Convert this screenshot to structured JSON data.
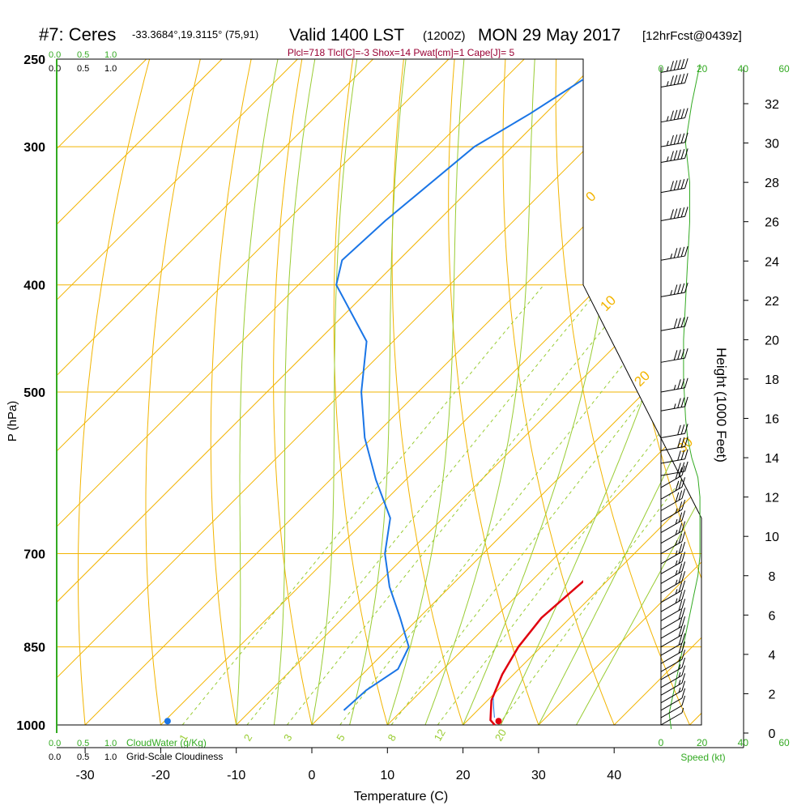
{
  "chart_data": {
    "type": "skew-t",
    "header": {
      "station": "#7: Ceres",
      "coords": "-33.3684°,19.3115° (75,91)",
      "valid": "Valid 1400 LST",
      "utc": "(1200Z)",
      "date": "MON 29 May 2017",
      "fcst": "[12hrFcst@0439z]"
    },
    "indices": "Plcl=718 Tlcl[C]=-3 Shox=14 Pwat[cm]=1 Cape[J]= 5",
    "xlabel": "Temperature (C)",
    "ylabel": "P (hPa)",
    "height_label": "Height (1000 Feet)",
    "speed_label": "Speed (kt)",
    "cloudwater_label": "CloudWater (g/Kg)",
    "cloudiness_label": "Grid-Scale Cloudiness",
    "cloud_ticks": [
      "0.0",
      "0.5",
      "1.0"
    ],
    "x_ticks": [
      "-30",
      "-20",
      "-10",
      "0",
      "10",
      "20",
      "30",
      "40"
    ],
    "pressure_ticks": [
      "250",
      "300",
      "400",
      "500",
      "700",
      "850",
      "1000"
    ],
    "height_ticks": [
      "0",
      "2",
      "4",
      "6",
      "8",
      "10",
      "12",
      "14",
      "16",
      "18",
      "20",
      "22",
      "24",
      "26",
      "28",
      "30",
      "32"
    ],
    "speed_ticks": [
      "0",
      "20",
      "40",
      "60"
    ],
    "mixing_ratio_labels": [
      "1",
      "2",
      "3",
      "5",
      "8",
      "12",
      "20"
    ],
    "isotherm_labels": [
      "10",
      "0",
      "-10",
      "-20",
      "-30"
    ],
    "adiabat_labels": [
      "0",
      "10",
      "20",
      "30"
    ],
    "temperature_profile": [
      [
        1000,
        24.2
      ],
      [
        990,
        23.0
      ],
      [
        950,
        20.5
      ],
      [
        900,
        18.5
      ],
      [
        850,
        17.0
      ],
      [
        800,
        16.2
      ],
      [
        750,
        16.8
      ],
      [
        700,
        17.5
      ],
      [
        650,
        18.2
      ],
      [
        600,
        17.5
      ],
      [
        550,
        14.5
      ],
      [
        500,
        10.5
      ],
      [
        450,
        5.5
      ],
      [
        400,
        0.0
      ],
      [
        350,
        -6.5
      ],
      [
        300,
        -14.5
      ],
      [
        270,
        -20.0
      ],
      [
        257,
        -22.5
      ]
    ],
    "dewpoint_profile": [
      [
        970,
        2.3
      ],
      [
        930,
        2.6
      ],
      [
        890,
        4.0
      ],
      [
        850,
        2.5
      ],
      [
        800,
        -2.5
      ],
      [
        750,
        -8.0
      ],
      [
        700,
        -13.0
      ],
      [
        650,
        -17.0
      ],
      [
        600,
        -24.0
      ],
      [
        550,
        -31.0
      ],
      [
        500,
        -37.5
      ],
      [
        450,
        -43.5
      ],
      [
        400,
        -55.0
      ],
      [
        380,
        -57.5
      ],
      [
        350,
        -57.0
      ],
      [
        300,
        -55.0
      ],
      [
        280,
        -52.0
      ],
      [
        257,
        -49.0
      ]
    ],
    "surface_temperature": 24.2,
    "surface_dewpoint": 4.9,
    "wind_speed_profile": [
      [
        0.2,
        5
      ],
      [
        1,
        4
      ],
      [
        2,
        6
      ],
      [
        3,
        8
      ],
      [
        4,
        10
      ],
      [
        5,
        12
      ],
      [
        6,
        14
      ],
      [
        7,
        16
      ],
      [
        8,
        18
      ],
      [
        9,
        19
      ],
      [
        10,
        19
      ],
      [
        11,
        19
      ],
      [
        12,
        19
      ],
      [
        13,
        18
      ],
      [
        14,
        15
      ],
      [
        15,
        13
      ],
      [
        16,
        12
      ],
      [
        18,
        11
      ],
      [
        20,
        11
      ],
      [
        22,
        12
      ],
      [
        24,
        13
      ],
      [
        26,
        14
      ],
      [
        28,
        14
      ],
      [
        30,
        12
      ],
      [
        32,
        15
      ],
      [
        34,
        19
      ]
    ],
    "wind_barbs": [
      [
        1000,
        0,
        8
      ],
      [
        985,
        0,
        12
      ],
      [
        970,
        0,
        14
      ],
      [
        955,
        0,
        15
      ],
      [
        940,
        0,
        16
      ],
      [
        925,
        0,
        17
      ],
      [
        910,
        0,
        18
      ],
      [
        895,
        0,
        19
      ],
      [
        880,
        0,
        20
      ],
      [
        865,
        0,
        21
      ],
      [
        850,
        0,
        22
      ],
      [
        835,
        0,
        23
      ],
      [
        820,
        0,
        24
      ],
      [
        805,
        0,
        24
      ],
      [
        790,
        0,
        25
      ],
      [
        775,
        0,
        25
      ],
      [
        760,
        0,
        26
      ],
      [
        745,
        0,
        26
      ],
      [
        730,
        0,
        27
      ],
      [
        715,
        0,
        27
      ],
      [
        700,
        0,
        28
      ],
      [
        685,
        0,
        28
      ],
      [
        670,
        0,
        29
      ],
      [
        655,
        0,
        29
      ],
      [
        640,
        0,
        30
      ],
      [
        625,
        0,
        30
      ],
      [
        610,
        0,
        31
      ],
      [
        595,
        0,
        31
      ],
      [
        580,
        0,
        32
      ],
      [
        565,
        0,
        33
      ],
      [
        550,
        0,
        34
      ],
      [
        520,
        0,
        35
      ],
      [
        500,
        0,
        37
      ],
      [
        470,
        0,
        40
      ],
      [
        440,
        0,
        42
      ],
      [
        410,
        0,
        45
      ],
      [
        380,
        0,
        48
      ],
      [
        350,
        0,
        50
      ],
      [
        330,
        0,
        52
      ],
      [
        310,
        0,
        55
      ],
      [
        300,
        0,
        55
      ],
      [
        285,
        0,
        55
      ],
      [
        265,
        0,
        56
      ],
      [
        257,
        0,
        56
      ]
    ]
  }
}
